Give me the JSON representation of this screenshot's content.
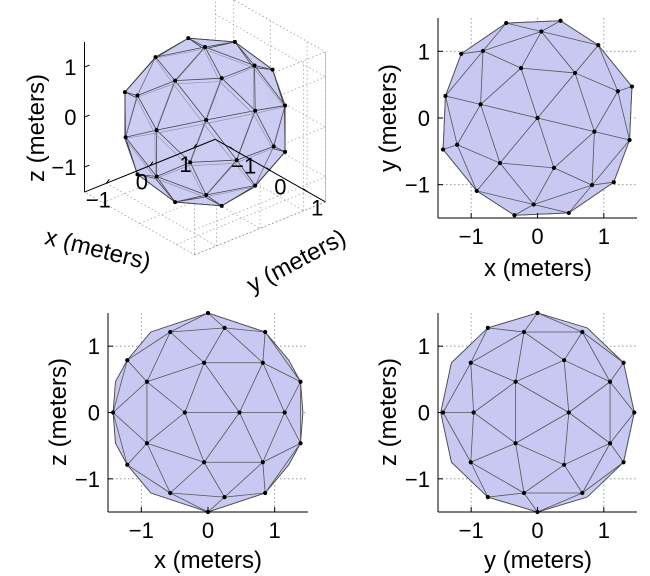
{
  "chart_data": [
    {
      "type": "mesh3d",
      "view": "isometric",
      "xlabel": "x (meters)",
      "ylabel": "y (meters)",
      "zlabel": "z (meters)",
      "xticks": [
        "−1",
        "0",
        "1"
      ],
      "yticks": [
        "−1",
        "0",
        "1"
      ],
      "zticks": [
        "−1",
        "0",
        "1"
      ],
      "xlim": [
        -1.5,
        1.5
      ],
      "ylim": [
        -1.5,
        1.5
      ],
      "zlim": [
        -1.5,
        1.5
      ],
      "grid": true,
      "radius": 1.5,
      "colors": {
        "face": "#c8c8f2",
        "edge": "#555555",
        "vertex": "#000000"
      }
    },
    {
      "type": "mesh2d",
      "view": "top",
      "xlabel": "x (meters)",
      "ylabel": "y (meters)",
      "xticks": [
        "−1",
        "0",
        "1"
      ],
      "yticks": [
        "−1",
        "0",
        "1"
      ],
      "xlim": [
        -1.5,
        1.5
      ],
      "ylim": [
        -1.5,
        1.5
      ],
      "grid": true,
      "radius": 1.5
    },
    {
      "type": "mesh2d",
      "view": "front",
      "xlabel": "x (meters)",
      "ylabel": "z (meters)",
      "xticks": [
        "−1",
        "0",
        "1"
      ],
      "yticks": [
        "−1",
        "0",
        "1"
      ],
      "xlim": [
        -1.5,
        1.5
      ],
      "ylim": [
        -1.5,
        1.5
      ],
      "grid": true,
      "radius": 1.5
    },
    {
      "type": "mesh2d",
      "view": "side",
      "xlabel": "y (meters)",
      "ylabel": "z (meters)",
      "xticks": [
        "−1",
        "0",
        "1"
      ],
      "yticks": [
        "−1",
        "0",
        "1"
      ],
      "xlim": [
        -1.5,
        1.5
      ],
      "ylim": [
        -1.5,
        1.5
      ],
      "grid": true,
      "radius": 1.5
    }
  ]
}
